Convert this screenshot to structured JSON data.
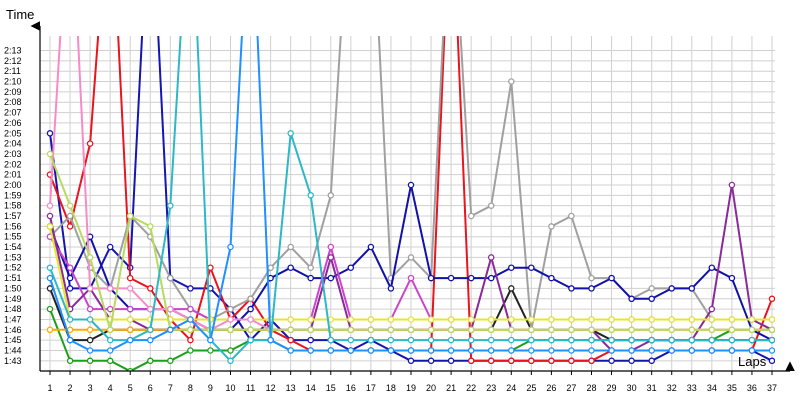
{
  "chart_data": {
    "type": "line",
    "title": "",
    "xlabel": "Laps",
    "ylabel": "Time",
    "x": [
      1,
      2,
      3,
      4,
      5,
      6,
      7,
      8,
      9,
      10,
      11,
      12,
      13,
      14,
      15,
      16,
      17,
      18,
      19,
      20,
      21,
      22,
      23,
      24,
      25,
      26,
      27,
      28,
      29,
      30,
      31,
      32,
      33,
      34,
      35,
      36,
      37
    ],
    "ylim": [
      102.5,
      134.5
    ],
    "y_unit": "seconds (tick labels shown as m:ss)",
    "y_ticks": [
      "1:43",
      "1:44",
      "1:45",
      "1:46",
      "1:47",
      "1:48",
      "1:49",
      "1:50",
      "1:51",
      "1:52",
      "1:53",
      "1:54",
      "1:55",
      "1:56",
      "1:57",
      "1:58",
      "1:59",
      "2:00",
      "2:01",
      "2:02",
      "2:03",
      "2:04",
      "2:05",
      "2:06",
      "2:07",
      "2:08",
      "2:09",
      "2:10",
      "2:11",
      "2:12",
      "2:13"
    ],
    "grid": true,
    "legend": "none",
    "series": [
      {
        "color": "#1515b0",
        "values": [
          125,
          110,
          110,
          114,
          112,
          150,
          111,
          110,
          110,
          108,
          105,
          107,
          105,
          105,
          105,
          104,
          105,
          104,
          103,
          103,
          103,
          103,
          103,
          103,
          103,
          103,
          103,
          103,
          103,
          103,
          103,
          104,
          104,
          104,
          104,
          104,
          103
        ]
      },
      {
        "color": "#e8141e",
        "values": [
          121,
          116,
          124,
          150,
          111,
          110,
          107,
          105,
          112,
          107,
          109,
          106,
          105,
          104,
          104,
          104,
          104,
          104,
          104,
          104,
          150,
          103,
          103,
          103,
          103,
          103,
          103,
          103,
          104,
          104,
          104,
          104,
          104,
          104,
          104,
          104,
          109
        ]
      },
      {
        "color": "#1aa01a",
        "values": [
          108,
          103,
          103,
          103,
          102,
          103,
          103,
          104,
          104,
          104,
          105,
          105,
          104,
          104,
          104,
          104,
          104,
          104,
          104,
          104,
          104,
          104,
          104,
          104,
          105,
          105,
          105,
          105,
          105,
          105,
          105,
          105,
          105,
          105,
          106,
          106,
          106
        ]
      },
      {
        "color": "#222222",
        "values": [
          110,
          105,
          105,
          106,
          106,
          106,
          106,
          106,
          106,
          106,
          106,
          106,
          106,
          106,
          106,
          106,
          106,
          106,
          106,
          106,
          106,
          106,
          106,
          110,
          106,
          106,
          106,
          106,
          105,
          105,
          105,
          105,
          105,
          105,
          105,
          105,
          105
        ]
      },
      {
        "color": "#a0a0a0",
        "values": [
          115,
          117,
          112,
          110,
          117,
          115,
          111,
          108,
          107,
          108,
          109,
          112,
          114,
          112,
          119,
          150,
          150,
          111,
          113,
          111,
          150,
          117,
          118,
          130,
          106,
          116,
          117,
          111,
          111,
          109,
          110,
          110,
          110,
          107,
          107,
          107,
          106
        ]
      },
      {
        "color": "#1111aa",
        "values": [
          116,
          111,
          115,
          110,
          108,
          108,
          108,
          107,
          106,
          106,
          108,
          111,
          112,
          111,
          111,
          112,
          114,
          110,
          120,
          111,
          111,
          111,
          111,
          112,
          112,
          111,
          110,
          110,
          111,
          109,
          109,
          110,
          110,
          112,
          111,
          106,
          105
        ]
      },
      {
        "color": "#cc44cc",
        "values": [
          115,
          112,
          108,
          108,
          108,
          108,
          108,
          108,
          107,
          107,
          107,
          107,
          107,
          107,
          114,
          107,
          107,
          107,
          111,
          107,
          107,
          107,
          107,
          107,
          107,
          107,
          107,
          107,
          107,
          107,
          107,
          107,
          107,
          107,
          107,
          107,
          107
        ]
      },
      {
        "color": "#8a2a9a",
        "values": [
          117,
          108,
          110,
          107,
          107,
          106,
          106,
          106,
          106,
          106,
          106,
          106,
          106,
          106,
          113,
          106,
          106,
          106,
          106,
          106,
          106,
          106,
          113,
          106,
          106,
          106,
          106,
          106,
          104,
          104,
          105,
          105,
          105,
          108,
          120,
          107,
          106
        ]
      },
      {
        "color": "#e6e62e",
        "values": [
          116,
          107,
          107,
          107,
          107,
          107,
          107,
          107,
          107,
          107,
          107,
          107,
          107,
          107,
          107,
          107,
          107,
          107,
          107,
          107,
          107,
          107,
          107,
          107,
          107,
          107,
          107,
          107,
          107,
          107,
          107,
          107,
          107,
          107,
          107,
          107,
          107
        ]
      },
      {
        "color": "#ffaa00",
        "values": [
          106,
          106,
          106,
          106,
          106,
          106,
          106,
          106,
          106,
          106,
          106,
          106,
          106,
          106,
          106,
          106,
          106,
          106,
          106,
          106,
          106,
          106,
          106,
          106,
          106,
          106,
          106,
          106,
          106,
          106,
          106,
          106,
          106,
          106,
          106,
          106,
          106
        ]
      },
      {
        "color": "#f58cc8",
        "values": [
          118,
          150,
          110,
          110,
          110,
          108,
          108,
          107,
          106,
          107,
          107,
          106,
          106,
          106,
          106,
          106,
          106,
          106,
          106,
          106,
          106,
          106,
          106,
          106,
          106,
          106,
          106,
          106,
          106,
          106,
          106,
          106,
          106,
          106,
          106,
          106,
          106
        ]
      },
      {
        "color": "#b7db5e",
        "values": [
          123,
          118,
          113,
          106,
          117,
          116,
          106,
          106,
          106,
          106,
          106,
          106,
          106,
          106,
          106,
          106,
          106,
          106,
          106,
          106,
          106,
          106,
          106,
          106,
          106,
          106,
          106,
          106,
          106,
          106,
          106,
          106,
          106,
          106,
          106,
          106,
          106
        ]
      },
      {
        "color": "#2db8c8",
        "values": [
          112,
          107,
          107,
          105,
          105,
          106,
          118,
          150,
          105,
          103,
          105,
          105,
          125,
          119,
          105,
          105,
          105,
          105,
          105,
          105,
          105,
          105,
          105,
          105,
          105,
          105,
          105,
          105,
          105,
          105,
          105,
          105,
          105,
          105,
          105,
          105,
          105
        ]
      },
      {
        "color": "#1e90ff",
        "values": [
          111,
          105,
          104,
          104,
          105,
          105,
          106,
          107,
          105,
          114,
          150,
          105,
          104,
          104,
          104,
          104,
          104,
          104,
          104,
          104,
          104,
          104,
          104,
          104,
          104,
          104,
          104,
          104,
          104,
          104,
          104,
          104,
          104,
          104,
          104,
          104,
          104
        ]
      }
    ]
  }
}
